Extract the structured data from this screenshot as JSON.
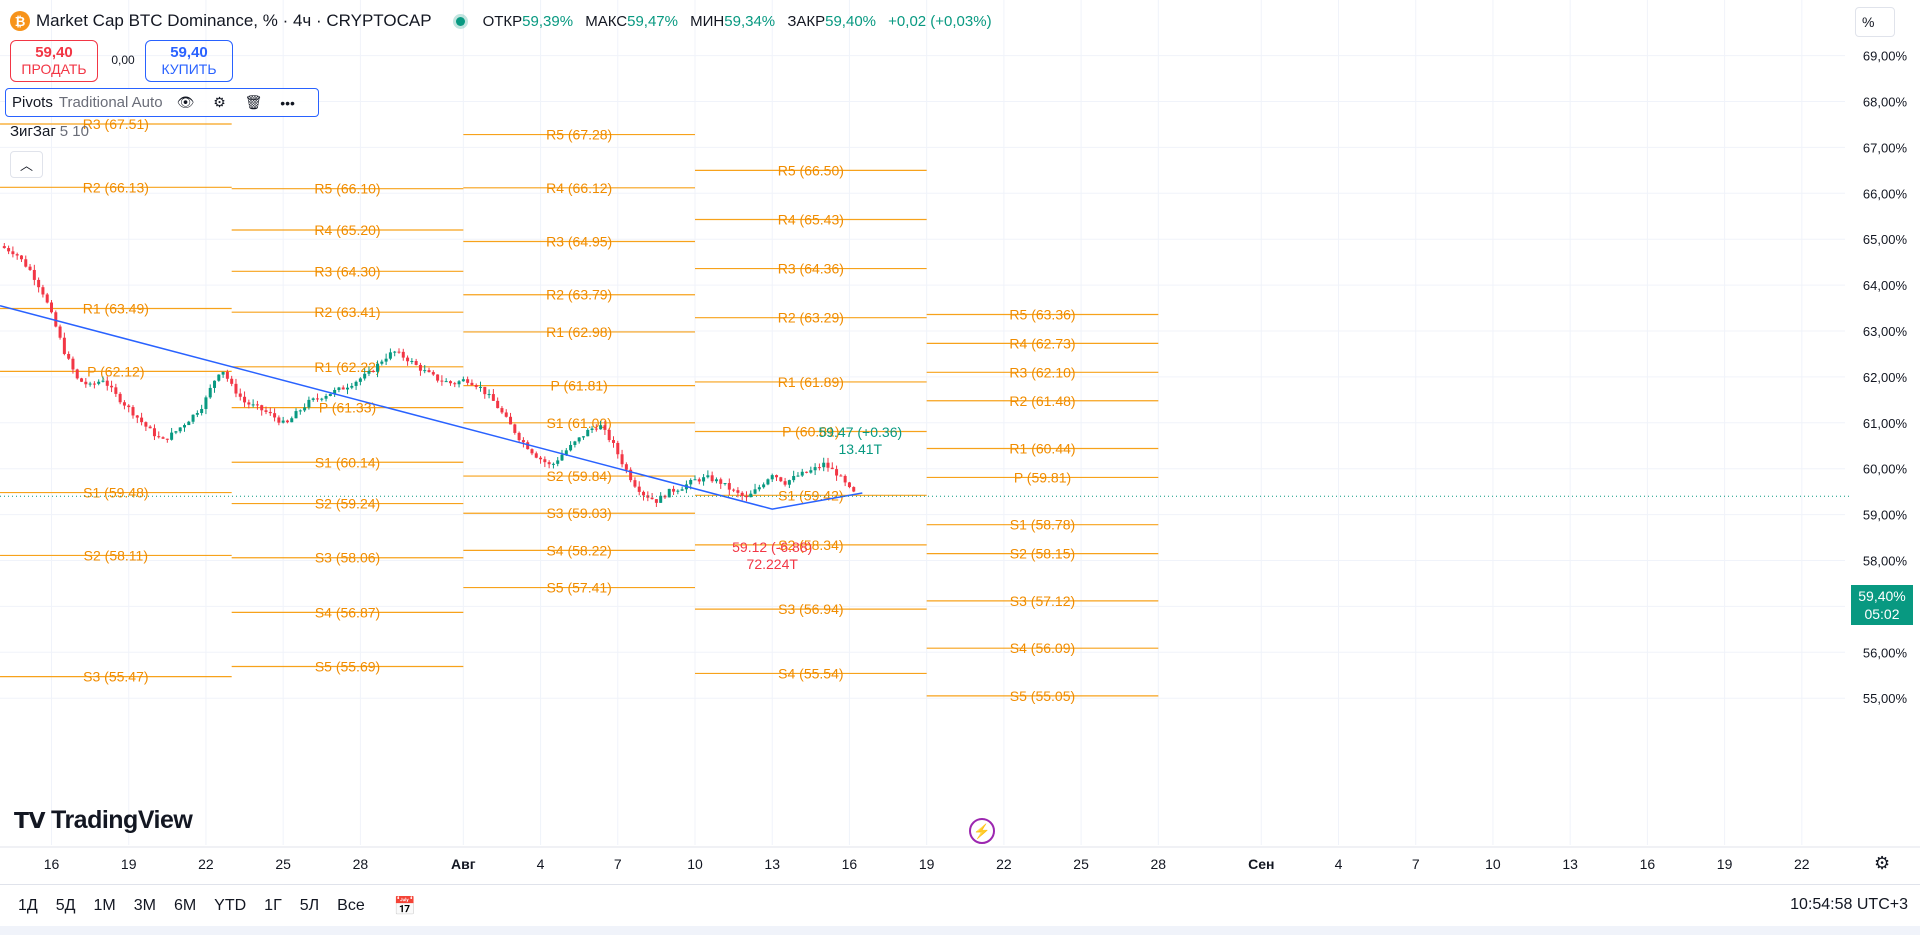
{
  "header": {
    "symbol_icon": "bitcoin-icon",
    "title": "Market Cap BTC Dominance, % · 4ч · CRYPTOCAP",
    "open_label": "ОТКР",
    "open": "59,39%",
    "high_label": "МАКС",
    "high": "59,47%",
    "low_label": "МИН",
    "low": "59,34%",
    "close_label": "ЗАКР",
    "close": "59,40%",
    "change": "+0,02 (+0,03%)"
  },
  "trade": {
    "sell_price": "59,40",
    "sell_label": "ПРОДАТЬ",
    "spread": "0,00",
    "buy_price": "59,40",
    "buy_label": "КУПИТЬ"
  },
  "indicators": {
    "pivots_name": "Pivots",
    "pivots_args": "Traditional Auto",
    "zigzag_name": "ЗигЗаг",
    "zigzag_args": "5 10"
  },
  "scale_mode": "%",
  "current_price": "59,40%",
  "countdown": "05:02",
  "logo_text": "TradingView",
  "time_ranges": [
    "1Д",
    "5Д",
    "1М",
    "3М",
    "6М",
    "YTD",
    "1Г",
    "5Л",
    "Все"
  ],
  "clock": "10:54:58 UTC+3",
  "colors": {
    "pivot": "#f7a21b",
    "pivot_text": "#f08c00",
    "up": "#089981",
    "down": "#f23645",
    "trend": "#2962ff",
    "grid": "#f0f3fa"
  },
  "chart_data": {
    "type": "candlestick",
    "y_axis": {
      "min": 55,
      "max": 69,
      "step": 1,
      "unit": "%",
      "labels": [
        "69,00%",
        "68,00%",
        "67,00%",
        "66,00%",
        "65,00%",
        "64,00%",
        "63,00%",
        "62,00%",
        "61,00%",
        "60,00%",
        "59,00%",
        "58,00%",
        "57,00%",
        "56,00%",
        "55,00%"
      ]
    },
    "x_axis": {
      "labels": [
        {
          "t": 16,
          "label": "16"
        },
        {
          "t": 19,
          "label": "19"
        },
        {
          "t": 22,
          "label": "22"
        },
        {
          "t": 25,
          "label": "25"
        },
        {
          "t": 28,
          "label": "28"
        },
        {
          "t": 32,
          "label": "Авг"
        },
        {
          "t": 35,
          "label": "4"
        },
        {
          "t": 38,
          "label": "7"
        },
        {
          "t": 41,
          "label": "10"
        },
        {
          "t": 44,
          "label": "13"
        },
        {
          "t": 47,
          "label": "16"
        },
        {
          "t": 50,
          "label": "19"
        },
        {
          "t": 53,
          "label": "22"
        },
        {
          "t": 56,
          "label": "25"
        },
        {
          "t": 59,
          "label": "28"
        },
        {
          "t": 63,
          "label": "Сен"
        },
        {
          "t": 66,
          "label": "4"
        },
        {
          "t": 69,
          "label": "7"
        },
        {
          "t": 72,
          "label": "10"
        },
        {
          "t": 75,
          "label": "13"
        },
        {
          "t": 78,
          "label": "16"
        },
        {
          "t": 81,
          "label": "19"
        },
        {
          "t": 84,
          "label": "22"
        }
      ]
    },
    "close_path": [
      [
        14.0,
        64.85
      ],
      [
        14.6,
        64.7
      ],
      [
        15.2,
        64.3
      ],
      [
        15.7,
        63.8
      ],
      [
        16.1,
        63.2
      ],
      [
        16.5,
        62.55
      ],
      [
        17.0,
        61.95
      ],
      [
        17.5,
        61.8
      ],
      [
        18.0,
        61.95
      ],
      [
        18.5,
        61.6
      ],
      [
        19.2,
        61.2
      ],
      [
        19.7,
        60.9
      ],
      [
        20.3,
        60.6
      ],
      [
        20.8,
        60.8
      ],
      [
        21.4,
        61.1
      ],
      [
        21.9,
        61.4
      ],
      [
        22.3,
        61.9
      ],
      [
        22.6,
        62.2
      ],
      [
        23.0,
        61.8
      ],
      [
        23.5,
        61.45
      ],
      [
        24.1,
        61.3
      ],
      [
        24.6,
        61.15
      ],
      [
        25.1,
        60.95
      ],
      [
        25.5,
        61.2
      ],
      [
        26.0,
        61.45
      ],
      [
        26.6,
        61.6
      ],
      [
        27.3,
        61.75
      ],
      [
        27.8,
        61.9
      ],
      [
        28.4,
        62.1
      ],
      [
        28.9,
        62.4
      ],
      [
        29.3,
        62.55
      ],
      [
        29.8,
        62.4
      ],
      [
        30.4,
        62.15
      ],
      [
        31.0,
        61.95
      ],
      [
        31.6,
        61.85
      ],
      [
        32.1,
        61.95
      ],
      [
        32.6,
        61.8
      ],
      [
        33.2,
        61.45
      ],
      [
        33.7,
        61.05
      ],
      [
        34.2,
        60.65
      ],
      [
        34.8,
        60.3
      ],
      [
        35.4,
        60.05
      ],
      [
        35.9,
        60.35
      ],
      [
        36.4,
        60.6
      ],
      [
        36.9,
        60.85
      ],
      [
        37.3,
        60.95
      ],
      [
        37.8,
        60.55
      ],
      [
        38.2,
        60.1
      ],
      [
        38.6,
        59.7
      ],
      [
        39.0,
        59.45
      ],
      [
        39.5,
        59.3
      ],
      [
        40.0,
        59.5
      ],
      [
        40.5,
        59.6
      ],
      [
        41.0,
        59.75
      ],
      [
        41.5,
        59.8
      ],
      [
        42.0,
        59.7
      ],
      [
        42.5,
        59.5
      ],
      [
        43.0,
        59.35
      ],
      [
        43.5,
        59.6
      ],
      [
        44.0,
        59.9
      ],
      [
        44.5,
        59.7
      ],
      [
        45.0,
        59.85
      ],
      [
        45.5,
        59.95
      ],
      [
        46.0,
        60.1
      ],
      [
        46.5,
        59.9
      ],
      [
        47.0,
        59.55
      ],
      [
        47.3,
        59.4
      ]
    ],
    "zigzag": [
      [
        14.0,
        63.55
      ],
      [
        44.0,
        59.12
      ],
      [
        47.5,
        59.47
      ]
    ],
    "zigzag_labels": [
      {
        "text": "59.12 (-6.88)",
        "sub": "72.224T",
        "t": 44.0,
        "y": 59.12,
        "color": "down"
      },
      {
        "text": "59.47 (+0.36)",
        "sub": "13.41T",
        "t": 47.5,
        "y": 59.47,
        "color": "up"
      }
    ],
    "pivot_blocks": [
      {
        "t0": 14.0,
        "t1": 23.0,
        "levels": [
          {
            "label": "R3 (67.51)",
            "v": 67.51
          },
          {
            "label": "R2 (66.13)",
            "v": 66.13
          },
          {
            "label": "R1 (63.49)",
            "v": 63.49
          },
          {
            "label": "P (62.12)",
            "v": 62.12
          },
          {
            "label": "S1 (59.48)",
            "v": 59.48
          },
          {
            "label": "S2 (58.11)",
            "v": 58.11
          },
          {
            "label": "S3 (55.47)",
            "v": 55.47
          }
        ]
      },
      {
        "t0": 23.0,
        "t1": 32.0,
        "levels": [
          {
            "label": "R5 (66.10)",
            "v": 66.1
          },
          {
            "label": "R4 (65.20)",
            "v": 65.2
          },
          {
            "label": "R3 (64.30)",
            "v": 64.3
          },
          {
            "label": "R2 (63.41)",
            "v": 63.41
          },
          {
            "label": "R1 (62.22)",
            "v": 62.22
          },
          {
            "label": "P (61.33)",
            "v": 61.33
          },
          {
            "label": "S1 (60.14)",
            "v": 60.14
          },
          {
            "label": "S2 (59.24)",
            "v": 59.24
          },
          {
            "label": "S3 (58.06)",
            "v": 58.06
          },
          {
            "label": "S4 (56.87)",
            "v": 56.87
          },
          {
            "label": "S5 (55.69)",
            "v": 55.69
          }
        ]
      },
      {
        "t0": 32.0,
        "t1": 41.0,
        "levels": [
          {
            "label": "R5 (67.28)",
            "v": 67.28
          },
          {
            "label": "R4 (66.12)",
            "v": 66.12
          },
          {
            "label": "R3 (64.95)",
            "v": 64.95
          },
          {
            "label": "R2 (63.79)",
            "v": 63.79
          },
          {
            "label": "R1 (62.98)",
            "v": 62.98
          },
          {
            "label": "P (61.81)",
            "v": 61.81
          },
          {
            "label": "S1 (61.00)",
            "v": 61.0
          },
          {
            "label": "S2 (59.84)",
            "v": 59.84
          },
          {
            "label": "S3 (59.03)",
            "v": 59.03
          },
          {
            "label": "S4 (58.22)",
            "v": 58.22
          },
          {
            "label": "S5 (57.41)",
            "v": 57.41
          }
        ]
      },
      {
        "t0": 41.0,
        "t1": 50.0,
        "levels": [
          {
            "label": "R5 (66.50)",
            "v": 66.5
          },
          {
            "label": "R4 (65.43)",
            "v": 65.43
          },
          {
            "label": "R3 (64.36)",
            "v": 64.36
          },
          {
            "label": "R2 (63.29)",
            "v": 63.29
          },
          {
            "label": "R1 (61.89)",
            "v": 61.89
          },
          {
            "label": "P (60.81)",
            "v": 60.81
          },
          {
            "label": "S1 (59.42)",
            "v": 59.42
          },
          {
            "label": "S2 (58.34)",
            "v": 58.34
          },
          {
            "label": "S3 (56.94)",
            "v": 56.94
          },
          {
            "label": "S4 (55.54)",
            "v": 55.54
          }
        ]
      },
      {
        "t0": 50.0,
        "t1": 59.0,
        "levels": [
          {
            "label": "R5 (63.36)",
            "v": 63.36
          },
          {
            "label": "R4 (62.73)",
            "v": 62.73
          },
          {
            "label": "R3 (62.10)",
            "v": 62.1
          },
          {
            "label": "R2 (61.48)",
            "v": 61.48
          },
          {
            "label": "R1 (60.44)",
            "v": 60.44
          },
          {
            "label": "P (59.81)",
            "v": 59.81
          },
          {
            "label": "S1 (58.78)",
            "v": 58.78
          },
          {
            "label": "S2 (58.15)",
            "v": 58.15
          },
          {
            "label": "S3 (57.12)",
            "v": 57.12
          },
          {
            "label": "S4 (56.09)",
            "v": 56.09
          },
          {
            "label": "S5 (55.05)",
            "v": 55.05
          }
        ]
      }
    ],
    "current_value": 59.4
  }
}
